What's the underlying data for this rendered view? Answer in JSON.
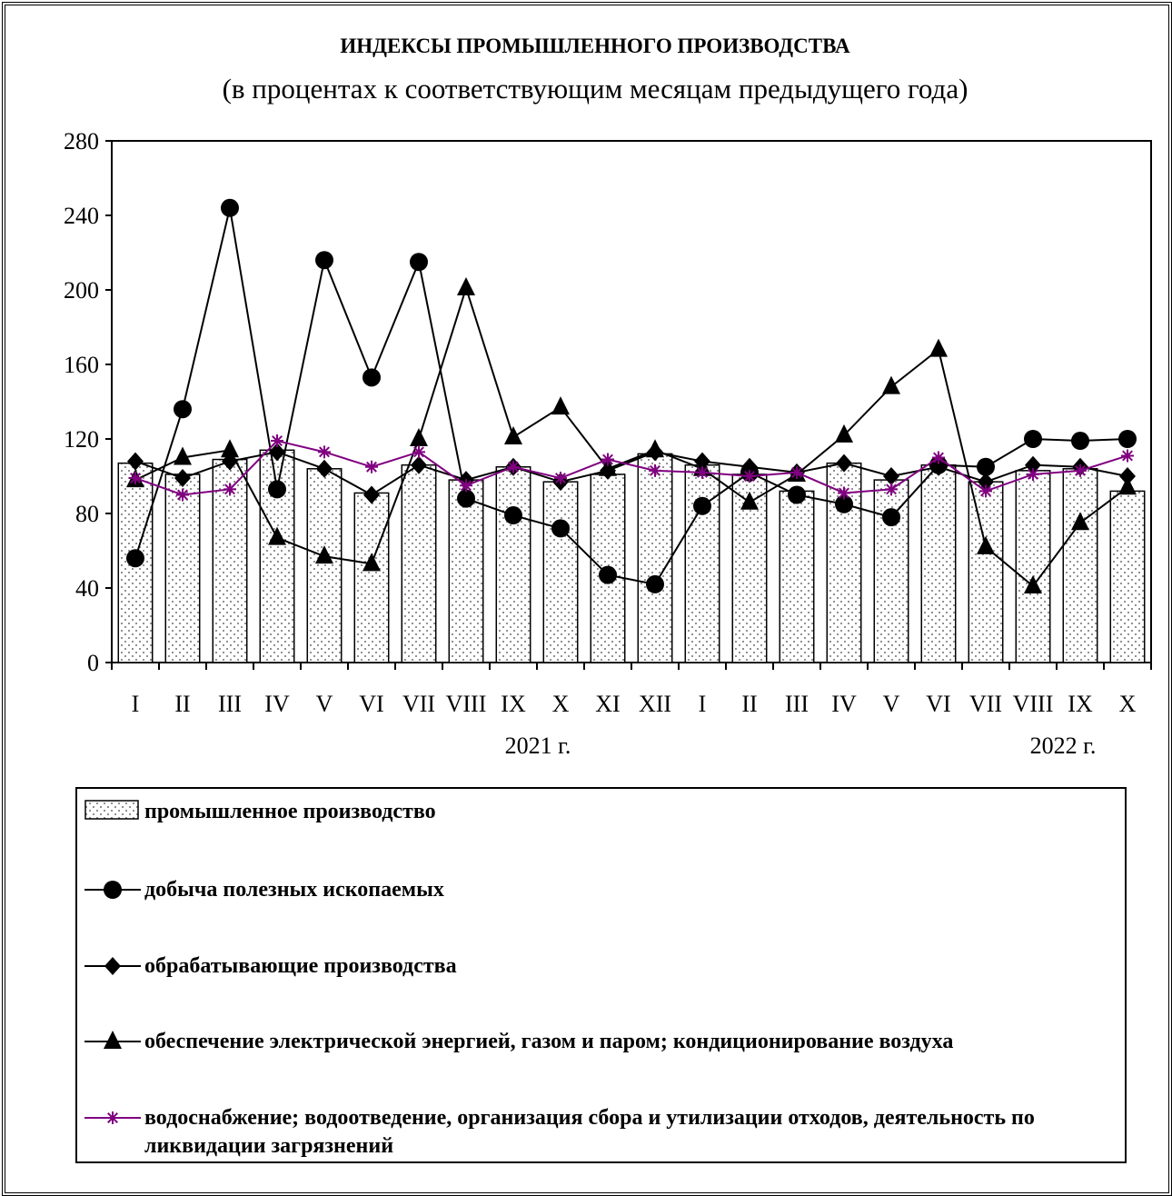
{
  "chart_data": {
    "type": "combo",
    "title": "ИНДЕКСЫ  ПРОМЫШЛЕННОГО  ПРОИЗВОДСТВА",
    "subtitle": "(в процентах к соответствующим месяцам предыдущего года)",
    "categories": [
      "I",
      "II",
      "III",
      "IV",
      "V",
      "VI",
      "VII",
      "VIII",
      "IX",
      "X",
      "XI",
      "XII",
      "I",
      "II",
      "III",
      "IV",
      "V",
      "VI",
      "VII",
      "VIII",
      "IX",
      "X"
    ],
    "year_labels": [
      "2021 г.",
      "2022 г."
    ],
    "ylim": [
      0,
      280
    ],
    "yticks": [
      0,
      40,
      80,
      120,
      160,
      200,
      240,
      280
    ],
    "grid": false,
    "series": [
      {
        "name": "промышленное производство",
        "type": "bar",
        "color": "#000000",
        "values": [
          107,
          101,
          109,
          114,
          104,
          91,
          106,
          98,
          105,
          97,
          101,
          112,
          106,
          101,
          92,
          107,
          98,
          106,
          97,
          103,
          104,
          92
        ]
      },
      {
        "name": "добыча полезных ископаемых",
        "type": "line",
        "marker": "circle",
        "color": "#000000",
        "values": [
          56,
          136,
          244,
          93,
          216,
          153,
          215,
          88,
          79,
          72,
          47,
          42,
          84,
          102,
          90,
          85,
          78,
          106,
          105,
          120,
          119,
          120
        ]
      },
      {
        "name": "обрабатывающие производства",
        "type": "line",
        "marker": "diamond",
        "color": "#000000",
        "values": [
          108,
          99,
          108,
          113,
          104,
          90,
          106,
          98,
          105,
          97,
          103,
          113,
          108,
          105,
          102,
          107,
          100,
          105,
          97,
          106,
          105,
          100
        ]
      },
      {
        "name": "обеспечение электрической энергией, газом и паром; кондиционирование воздуха",
        "type": "line",
        "marker": "triangle",
        "color": "#000000",
        "values": [
          98,
          110,
          114,
          67,
          57,
          53,
          120,
          201,
          121,
          137,
          104,
          114,
          104,
          86,
          101,
          122,
          148,
          168,
          62,
          41,
          75,
          94
        ]
      },
      {
        "name": "водоснабжение; водоотведение, организация сбора и утилизации отходов, деятельность по ликвидации загрязнений",
        "type": "line",
        "marker": "star",
        "color": "#800080",
        "values": [
          99,
          90,
          93,
          119,
          113,
          105,
          113,
          95,
          105,
          99,
          109,
          103,
          102,
          100,
          102,
          91,
          93,
          110,
          92,
          101,
          103,
          111
        ]
      }
    ]
  }
}
